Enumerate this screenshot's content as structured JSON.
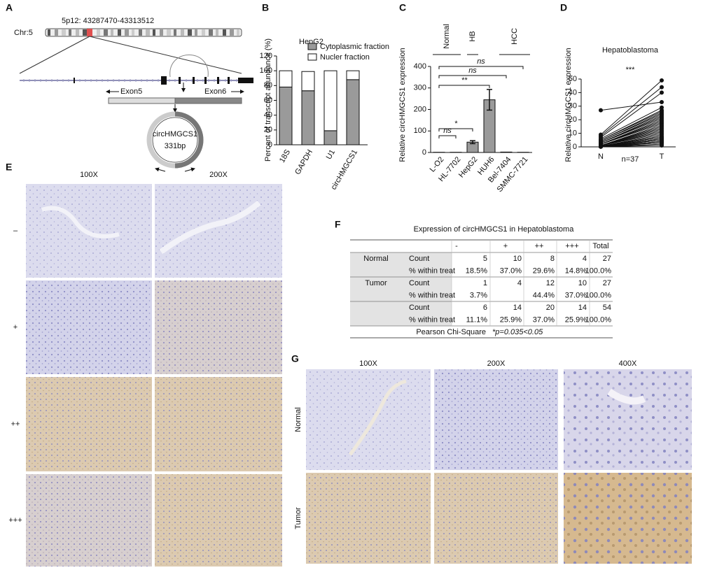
{
  "panel_labels": [
    "A",
    "B",
    "C",
    "D",
    "E",
    "F",
    "G"
  ],
  "panel_a": {
    "locus": "5p12: 43287470-43313512",
    "chromosome": "Chr:5",
    "exon_left": "Exon5",
    "exon_right": "Exon6",
    "circ_name": "circHMGCS1",
    "circ_size": "331bp"
  },
  "chart_data": [
    {
      "type": "stacked_bar",
      "title": "HepG2",
      "y_label": "Percent of transcript abundance (%)",
      "categories": [
        "18S",
        "GAPDH",
        "U1",
        "circHMGCS1"
      ],
      "series": [
        {
          "name": "Cytoplasmic fraction",
          "color": "#9a9a9a",
          "values": [
            78,
            73,
            19,
            88
          ]
        },
        {
          "name": "Nucler fraction",
          "color": "#ffffff",
          "values": [
            22,
            26,
            81,
            12
          ]
        }
      ],
      "ylim": [
        0,
        120
      ],
      "yticks": [
        0,
        20,
        40,
        60,
        80,
        100,
        120
      ]
    },
    {
      "type": "bar",
      "y_label": "Relative circHMGCS1 expression",
      "categories": [
        "L-O2",
        "HL-7702",
        "HepG2",
        "HUH6",
        "Bel-7404",
        "SMMC-7721"
      ],
      "values": [
        1,
        1,
        48,
        245,
        2,
        1
      ],
      "errors": [
        0,
        0,
        7,
        48,
        0,
        0
      ],
      "color": "#9a9a9a",
      "groups": [
        "Normal",
        "HB",
        "HCC"
      ],
      "annotations": [
        "ns",
        "*",
        "**",
        "ns",
        "ns"
      ],
      "ylim": [
        0,
        400
      ],
      "yticks": [
        0,
        100,
        200,
        300,
        400
      ]
    },
    {
      "type": "paired",
      "title": "Hepatoblastoma",
      "y_label": "Relative circHMGCS1 expression",
      "categories": [
        "N",
        "T"
      ],
      "annotation": "***",
      "n_label": "n=37",
      "pairs": [
        [
          27,
          33
        ],
        [
          9,
          49
        ],
        [
          8,
          44
        ],
        [
          7,
          40
        ],
        [
          6,
          29
        ],
        [
          5,
          27
        ],
        [
          5,
          26
        ],
        [
          4,
          25
        ],
        [
          4,
          24
        ],
        [
          3,
          23
        ],
        [
          3,
          22
        ],
        [
          3,
          21
        ],
        [
          2,
          20
        ],
        [
          2,
          19
        ],
        [
          2,
          18
        ],
        [
          2,
          17
        ],
        [
          1,
          16
        ],
        [
          1,
          15
        ],
        [
          1,
          14
        ],
        [
          1,
          13
        ],
        [
          1,
          12
        ],
        [
          1,
          11
        ],
        [
          1,
          10
        ],
        [
          0.5,
          9
        ],
        [
          0.5,
          8
        ],
        [
          0.5,
          7
        ],
        [
          0.5,
          7
        ],
        [
          0.3,
          6
        ],
        [
          0.3,
          6
        ],
        [
          0.3,
          5
        ],
        [
          0.3,
          5
        ],
        [
          0.2,
          4
        ],
        [
          0.2,
          4
        ],
        [
          0.2,
          3
        ],
        [
          0.1,
          3
        ],
        [
          0.1,
          2
        ],
        [
          0.1,
          1
        ]
      ],
      "ylim": [
        0,
        50
      ],
      "yticks": [
        0,
        10,
        20,
        30,
        40,
        50
      ]
    }
  ],
  "panel_e": {
    "columns": [
      "100X",
      "200X"
    ],
    "rows": [
      "–",
      "+",
      "++",
      "+++"
    ]
  },
  "table_f": {
    "title": "Expression of circHMGCS1 in Hepatoblastoma",
    "header": [
      null,
      null,
      "-",
      "+",
      "++",
      "+++",
      "Total"
    ],
    "rows": [
      [
        "Normal",
        "Count",
        "5",
        "10",
        "8",
        "4",
        "27"
      ],
      [
        null,
        "% within treat",
        "18.5%",
        "37.0%",
        "29.6%",
        "14.8%",
        "100.0%"
      ],
      [
        "Tumor",
        "Count",
        "1",
        "4",
        "12",
        "10",
        "27"
      ],
      [
        null,
        "% within treat",
        "3.7%",
        null,
        "44.4%",
        "37.0%",
        "100.0%"
      ],
      [
        null,
        "Count",
        "6",
        "14",
        "20",
        "14",
        "54"
      ],
      [
        null,
        "% within treat",
        "11.1%",
        "25.9%",
        "37.0%",
        "25.9%",
        "100.0%"
      ]
    ],
    "footer_test": "Pearson Chi-Square",
    "footer_p": "*p=0.035<0.05"
  },
  "panel_g": {
    "columns": [
      "100X",
      "200X",
      "400X"
    ],
    "rows": [
      "Normal",
      "Tumor"
    ]
  }
}
